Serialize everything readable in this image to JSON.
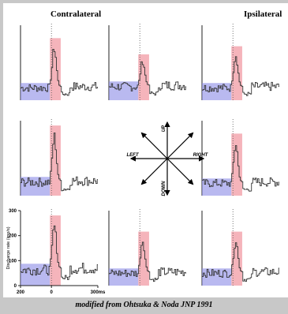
{
  "headers": {
    "left": "Contralateral",
    "right": "Ipsilateral"
  },
  "caption": "modified from Ohtsuka & Noda  JNP 1991",
  "colors": {
    "baseline_box": "#8a8ae6",
    "burst_box": "#f08c96",
    "trace": "#333333",
    "background": "#c8c8c8"
  },
  "compass": {
    "up": "UP",
    "down": "DOWN",
    "left": "LEFT",
    "right": "RIGHT"
  },
  "chart_data": {
    "type": "line",
    "ylabel": "Discharge rate (imp/s)",
    "yticks": [
      0,
      100,
      200,
      300
    ],
    "ylim": [
      0,
      300
    ],
    "xticks": [
      "200",
      "0",
      "300ms"
    ],
    "xlim": [
      -200,
      300
    ],
    "panels": [
      {
        "row": 0,
        "col": 0,
        "baseline_rate": 55,
        "peak_rate": 230
      },
      {
        "row": 0,
        "col": 1,
        "baseline_rate": 60,
        "peak_rate": 170
      },
      {
        "row": 0,
        "col": 2,
        "baseline_rate": 55,
        "peak_rate": 200
      },
      {
        "row": 1,
        "col": 0,
        "baseline_rate": 60,
        "peak_rate": 260
      },
      {
        "row": 1,
        "col": 2,
        "baseline_rate": 55,
        "peak_rate": 230
      },
      {
        "row": 2,
        "col": 0,
        "baseline_rate": 70,
        "peak_rate": 260
      },
      {
        "row": 2,
        "col": 1,
        "baseline_rate": 55,
        "peak_rate": 200
      },
      {
        "row": 2,
        "col": 2,
        "baseline_rate": 55,
        "peak_rate": 200
      }
    ]
  }
}
